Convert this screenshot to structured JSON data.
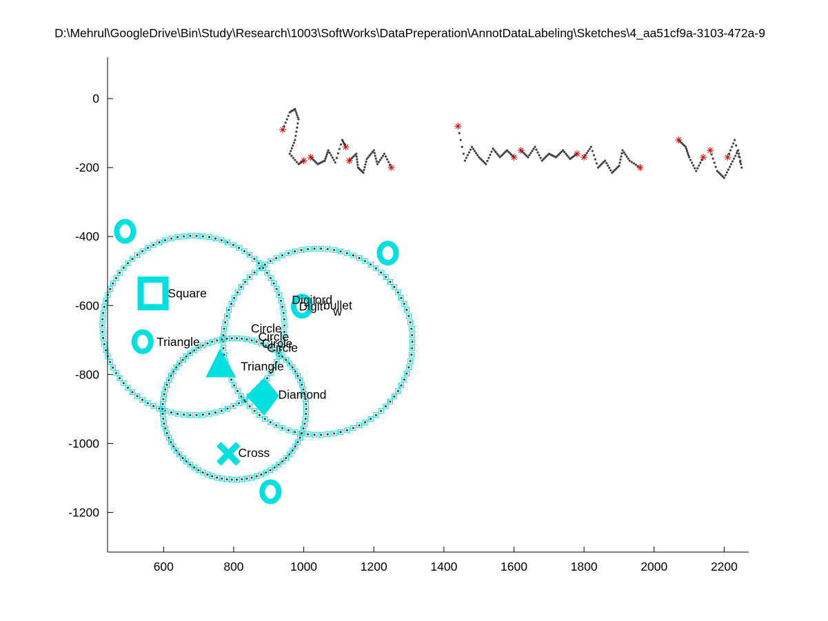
{
  "title": "D:\\Mehrul\\GoogleDrive\\Bin\\Study\\Research\\1003\\SoftWorks\\DataPreperation\\AnnotDataLabeling\\Sketches\\4_aa51cf9a-3103-472a-9",
  "colors": {
    "trace": "#404040",
    "box": "#00e0e0",
    "endpoint": "#e00000",
    "axis": "#000000"
  },
  "chart_data": {
    "type": "scatter",
    "title": "D:\\Mehrul\\GoogleDrive\\Bin\\Study\\Research\\1003\\SoftWorks\\DataPreperation\\AnnotDataLabeling\\Sketches\\4_aa51cf9a-3103-472a-9",
    "xlabel": "",
    "ylabel": "",
    "xlim": [
      440,
      2270
    ],
    "ylim": [
      -1315,
      120
    ],
    "xticks": [
      600,
      800,
      1000,
      1200,
      1400,
      1600,
      1800,
      2000,
      2200
    ],
    "yticks": [
      0,
      -200,
      -400,
      -600,
      -800,
      -1000,
      -1200
    ],
    "grid": false,
    "circles": [
      {
        "cx": 685,
        "cy": -658,
        "r": 260
      },
      {
        "cx": 1040,
        "cy": -705,
        "r": 270
      },
      {
        "cx": 802,
        "cy": -900,
        "r": 205
      }
    ],
    "filled_shapes": [
      {
        "shape": "square",
        "x": 570,
        "y": -565
      },
      {
        "shape": "blob",
        "x": 540,
        "y": -705
      },
      {
        "shape": "triangle",
        "x": 765,
        "y": -778
      },
      {
        "shape": "diamond",
        "x": 887,
        "y": -862
      },
      {
        "shape": "cross",
        "x": 785,
        "y": -1030
      },
      {
        "shape": "blob",
        "x": 995,
        "y": -602
      },
      {
        "shape": "blob",
        "x": 1240,
        "y": -448
      },
      {
        "shape": "blob",
        "x": 490,
        "y": -385
      },
      {
        "shape": "blob",
        "x": 905,
        "y": -1140
      }
    ],
    "annotations": [
      {
        "text": "Square",
        "x": 612,
        "y": -565
      },
      {
        "text": "Triangle",
        "x": 580,
        "y": -705
      },
      {
        "text": "Triangle",
        "x": 820,
        "y": -776
      },
      {
        "text": "Diamond",
        "x": 927,
        "y": -858
      },
      {
        "text": "Cross",
        "x": 813,
        "y": -1027
      },
      {
        "text": "Circle",
        "x": 849,
        "y": -666
      },
      {
        "text": "Circle",
        "x": 870,
        "y": -690
      },
      {
        "text": "Circle",
        "x": 880,
        "y": -710
      },
      {
        "text": "Circle",
        "x": 895,
        "y": -722
      },
      {
        "text": "Digit",
        "x": 966,
        "y": -584
      },
      {
        "text": "ord",
        "x": 1032,
        "y": -584
      },
      {
        "text": "Digit",
        "x": 986,
        "y": -602
      },
      {
        "text": "bullet",
        "x": 1056,
        "y": -599
      },
      {
        "text": "w",
        "x": 1084,
        "y": -617
      }
    ]
  }
}
